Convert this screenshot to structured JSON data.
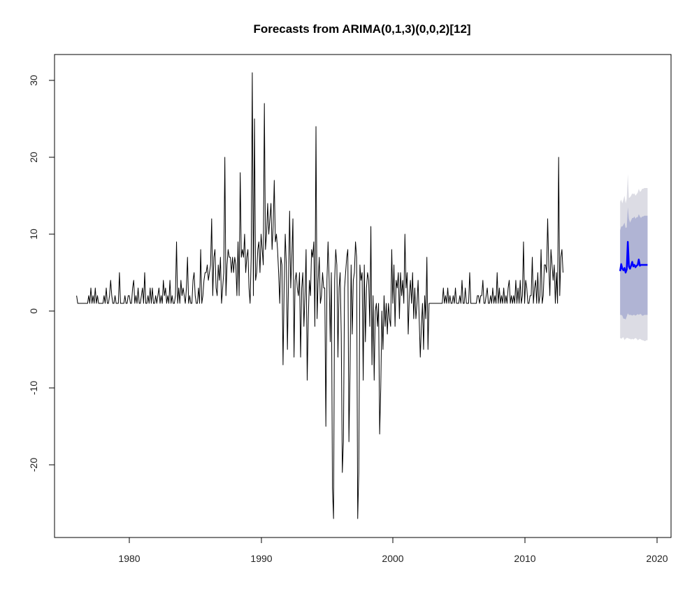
{
  "chart_data": {
    "type": "line",
    "title": "Forecasts from ARIMA(0,1,3)(0,0,2)[12]",
    "xlabel": "",
    "ylabel": "",
    "xlim": [
      1976.0,
      2019.4
    ],
    "ylim": [
      -27.0,
      31.0
    ],
    "x_ticks": [
      "1980",
      "1990",
      "2000",
      "2010",
      "2020"
    ],
    "y_ticks": [
      "30",
      "20",
      "10",
      "0",
      "-10",
      "-20"
    ],
    "grid": false,
    "legend": "none",
    "colors": {
      "history": "#000000",
      "forecast": "#0000ff",
      "band_80": "#b0b4d4",
      "band_95": "#dcdce4"
    },
    "history": {
      "start": 1976.0,
      "step_per_year": 12,
      "values": [
        2,
        1,
        1,
        1,
        1,
        1,
        1,
        1,
        1,
        1,
        1,
        2,
        1,
        3,
        1,
        2,
        1,
        3,
        1,
        2,
        1,
        1,
        1,
        1,
        1,
        2,
        1,
        3,
        1,
        1,
        2,
        4,
        2,
        1,
        1,
        2,
        1,
        1,
        1,
        5,
        1,
        1,
        1,
        1,
        2,
        1,
        1,
        2,
        2,
        1,
        1,
        3,
        4,
        1,
        2,
        1,
        3,
        1,
        1,
        2,
        3,
        1,
        5,
        1,
        1,
        2,
        1,
        3,
        1,
        3,
        1,
        1,
        2,
        1,
        2,
        3,
        1,
        2,
        1,
        4,
        2,
        3,
        1,
        2,
        1,
        4,
        1,
        2,
        1,
        1,
        2,
        9,
        1,
        3,
        1,
        4,
        2,
        3,
        2,
        1,
        3,
        7,
        1,
        2,
        1,
        1,
        4,
        5,
        2,
        1,
        1,
        3,
        1,
        8,
        1,
        2,
        4,
        5,
        5,
        6,
        4,
        5,
        6,
        12,
        2,
        7,
        8,
        3,
        2,
        6,
        4,
        7,
        1,
        3,
        5,
        20,
        2,
        6,
        8,
        7,
        7,
        5,
        7,
        5,
        7,
        6,
        2,
        9,
        2,
        18,
        7,
        8,
        7,
        10,
        5,
        7,
        8,
        3,
        1,
        7,
        31,
        2,
        25,
        4,
        5,
        8,
        9,
        5,
        10,
        8,
        6,
        27,
        8,
        10,
        14,
        10,
        12,
        14,
        8,
        11,
        17,
        9,
        10,
        8,
        5,
        1,
        7,
        6,
        -7,
        3,
        10,
        6,
        -5,
        4,
        13,
        3,
        7,
        12,
        -6,
        4,
        5,
        3,
        2,
        5,
        -6,
        3,
        5,
        -2,
        2,
        8,
        -9,
        -1,
        4,
        2,
        8,
        7,
        9,
        -2,
        24,
        -1,
        4,
        7,
        1,
        2,
        5,
        3,
        3,
        -15,
        4,
        9,
        4,
        -4,
        5,
        -23,
        -27,
        4,
        8,
        6,
        -6,
        3,
        5,
        -3,
        -21,
        -17,
        3,
        5,
        7,
        8,
        -17,
        -8,
        6,
        -3,
        4,
        5,
        9,
        7,
        -27,
        -21,
        6,
        4,
        5,
        -9,
        6,
        -4,
        3,
        5,
        4,
        -2,
        11,
        -7,
        2,
        -9,
        0,
        1,
        -2,
        1,
        -16,
        -10,
        0,
        -5,
        2,
        -2,
        1,
        -3,
        1,
        -1,
        -2,
        8,
        1,
        6,
        -2,
        4,
        3,
        5,
        -1,
        5,
        2,
        4,
        1,
        10,
        3,
        5,
        -3,
        2,
        4,
        1,
        5,
        -1,
        3,
        -1,
        1,
        4,
        -1,
        -6,
        -2,
        1,
        -5,
        2,
        -1,
        7,
        -5,
        1,
        1,
        1,
        1,
        1,
        1,
        1,
        1,
        1,
        1,
        1,
        1,
        1,
        3,
        1,
        2,
        1,
        3,
        1,
        2,
        1,
        1,
        2,
        1,
        3,
        1,
        1,
        1,
        2,
        1,
        4,
        1,
        1,
        3,
        1,
        1,
        1,
        5,
        1,
        1,
        1,
        1,
        1,
        1,
        2,
        2,
        1,
        2,
        2,
        4,
        1,
        1,
        2,
        3,
        1,
        1,
        2,
        1,
        3,
        1,
        2,
        1,
        5,
        1,
        3,
        1,
        2,
        1,
        3,
        1,
        2,
        1,
        3,
        4,
        1,
        2,
        1,
        2,
        1,
        4,
        1,
        3,
        1,
        4,
        1,
        2,
        9,
        1,
        4,
        3,
        1,
        1,
        2,
        2,
        7,
        1,
        3,
        4,
        1,
        5,
        1,
        2,
        8,
        1,
        2,
        6,
        6,
        5,
        12,
        6,
        2,
        8,
        6,
        4,
        6,
        1,
        5,
        1,
        20,
        2,
        7,
        8,
        5
      ]
    },
    "forecast": {
      "start": 2017.25,
      "step_per_year": 12,
      "mean": [
        5.2,
        6.1,
        5.5,
        5.3,
        5.6,
        5.0,
        5.4,
        9.0,
        5.8,
        5.5,
        5.9,
        6.4,
        5.8,
        6.0,
        5.7,
        5.9,
        6.0,
        6.7,
        5.9,
        6.0,
        6.0,
        6.0,
        6.0,
        6.0,
        6.0,
        6.0
      ],
      "lo80": [
        -0.5,
        -0.5,
        -0.6,
        -1.0,
        -1.0,
        -1.1,
        -0.7,
        -0.3,
        -0.5,
        -0.5,
        -0.5,
        -0.6,
        -0.5,
        -0.5,
        -0.6,
        -0.5,
        -0.4,
        -0.5,
        -0.4,
        -0.4,
        -0.6,
        -0.6,
        -0.5,
        -0.5,
        -0.5,
        -0.5
      ],
      "hi80": [
        10.5,
        11.0,
        11.0,
        11.2,
        11.5,
        10.8,
        10.9,
        13.5,
        12.0,
        11.5,
        11.8,
        12.1,
        12.1,
        12.3,
        12.0,
        12.2,
        12.2,
        12.6,
        12.3,
        12.1,
        12.3,
        12.3,
        12.4,
        12.4,
        12.4,
        12.4
      ],
      "lo95": [
        -3.5,
        -3.6,
        -3.5,
        -3.4,
        -3.8,
        -3.6,
        -3.5,
        -3.5,
        -3.6,
        -3.6,
        -3.7,
        -3.6,
        -3.7,
        -3.6,
        -3.5,
        -3.6,
        -3.8,
        -3.7,
        -3.6,
        -3.7,
        -3.8,
        -3.8,
        -3.9,
        -3.9,
        -3.8,
        -3.8
      ],
      "hi95": [
        14.2,
        14.5,
        14.0,
        14.5,
        15.0,
        14.0,
        14.6,
        17.8,
        14.7,
        14.8,
        15.0,
        15.3,
        15.2,
        15.3,
        15.0,
        15.2,
        15.4,
        15.9,
        15.5,
        15.6,
        15.9,
        15.9,
        16.0,
        16.0,
        16.0,
        16.0
      ]
    }
  }
}
